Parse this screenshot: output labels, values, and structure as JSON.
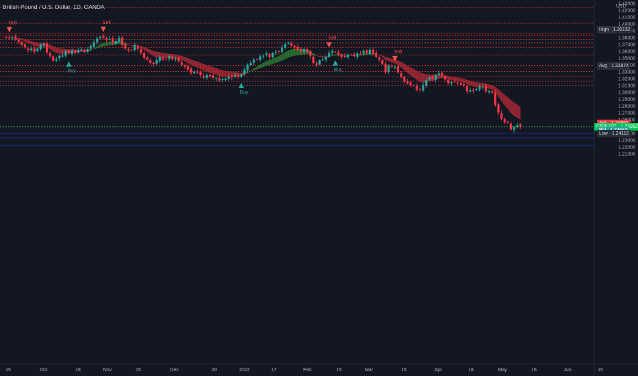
{
  "title": "British Pound / U.S. Dollar, 1D, OANDA",
  "currency": "USD",
  "colors": {
    "background": "#131722",
    "up": "#26a69a",
    "down": "#f23645",
    "bull_band": "#2e7d32",
    "bear_band": "#b22a36",
    "level_line": "#d32f2f",
    "price_line": "#4caf50",
    "text": "#b2b5be"
  },
  "chart_data": {
    "type": "candlestick",
    "symbol": "GBPUSD",
    "timeframe": "1D",
    "ylim": [
      1.2,
      1.43
    ],
    "y_ticks": [
      "1.43000",
      "1.42000",
      "1.41000",
      "1.40000",
      "1.39000",
      "1.38000",
      "1.37000",
      "1.36000",
      "1.35000",
      "1.34000",
      "1.33000",
      "1.32000",
      "1.31000",
      "1.30000",
      "1.29000",
      "1.28000",
      "1.27000",
      "1.26000",
      "1.25000",
      "1.24000",
      "1.23000",
      "1.22000",
      "1.21000"
    ],
    "x_ticks": [
      "15",
      "Oct",
      "18",
      "Nov",
      "15",
      "Dec",
      "20",
      "2022",
      "17",
      "Feb",
      "15",
      "Mar",
      "15",
      "Apr",
      "18",
      "May",
      "16",
      "Jun",
      "15"
    ],
    "closes": [
      1.3802,
      1.3797,
      1.3801,
      1.3773,
      1.3738,
      1.3693,
      1.3657,
      1.3618,
      1.3641,
      1.3592,
      1.3639,
      1.3688,
      1.3706,
      1.3582,
      1.3529,
      1.3462,
      1.3485,
      1.3535,
      1.3535,
      1.36,
      1.3574,
      1.3612,
      1.3581,
      1.3614,
      1.3629,
      1.3591,
      1.3631,
      1.3681,
      1.3735,
      1.3787,
      1.3812,
      1.38,
      1.3775,
      1.378,
      1.3722,
      1.375,
      1.3797,
      1.369,
      1.3639,
      1.3615,
      1.3611,
      1.3691,
      1.3636,
      1.357,
      1.3501,
      1.3475,
      1.3431,
      1.341,
      1.3472,
      1.3517,
      1.3478,
      1.348,
      1.353,
      1.3482,
      1.3495,
      1.3451,
      1.3399,
      1.3375,
      1.3332,
      1.3286,
      1.3302,
      1.3295,
      1.325,
      1.3216,
      1.325,
      1.3233,
      1.3212,
      1.3208,
      1.3171,
      1.319,
      1.3198,
      1.3225,
      1.3217,
      1.3253,
      1.3226,
      1.326,
      1.3334,
      1.3403,
      1.3429,
      1.3474,
      1.3477,
      1.3527,
      1.3535,
      1.3569,
      1.3515,
      1.3574,
      1.3589,
      1.3597,
      1.3653,
      1.3704,
      1.3728,
      1.3683,
      1.3658,
      1.3622,
      1.3599,
      1.3633,
      1.3593,
      1.3533,
      1.3429,
      1.3402,
      1.347,
      1.3485,
      1.352,
      1.3573,
      1.3604,
      1.359,
      1.3553,
      1.3518,
      1.352,
      1.355,
      1.3548,
      1.353,
      1.3567,
      1.356,
      1.3604,
      1.357,
      1.3623,
      1.3572,
      1.352,
      1.3475,
      1.3414,
      1.329,
      1.3389,
      1.3371,
      1.3371,
      1.329,
      1.3225,
      1.316,
      1.3133,
      1.311,
      1.3095,
      1.304,
      1.3039,
      1.3102,
      1.318,
      1.3218,
      1.3192,
      1.325,
      1.3276,
      1.3245,
      1.3186,
      1.313,
      1.315,
      1.3152,
      1.314,
      1.3112,
      1.31,
      1.3016,
      1.303,
      1.302,
      1.305,
      1.3081,
      1.3082,
      1.3015,
      1.302,
      1.2994,
      1.2814,
      1.2704,
      1.261,
      1.2562,
      1.2555,
      1.2456,
      1.249,
      1.2517,
      1.2494
    ],
    "signals": [
      {
        "label": "Sell",
        "index": 1
      },
      {
        "label": "Buy",
        "index": 20
      },
      {
        "label": "Sell",
        "index": 31
      },
      {
        "label": "Buy",
        "index": 75
      },
      {
        "label": "Sell",
        "index": 103
      },
      {
        "label": "Buy",
        "index": 105
      },
      {
        "label": "Sell",
        "index": 124
      }
    ],
    "levels": [
      1.424,
      1.4009,
      1.3864,
      1.3829,
      1.3775,
      1.3721,
      1.3657,
      1.3548,
      1.3395,
      1.3304,
      1.3228,
      1.3161,
      1.3096
    ],
    "blue_levels": [
      1.2399,
      1.2331,
      1.2227
    ],
    "price_line": 1.2494,
    "price_tags": [
      {
        "label": "High",
        "value": "1.39132",
        "price": 1.39132,
        "kind": "dark"
      },
      {
        "label": "Avg",
        "value": "1.33874",
        "price": 1.33874,
        "kind": "dark"
      },
      {
        "label": "Ask",
        "value": "1.24961",
        "price": 1.24961,
        "kind": "ask"
      },
      {
        "label": "GBPUSD",
        "value": "1.24952",
        "price": 1.24952,
        "kind": "current"
      },
      {
        "label": "Bid",
        "value": "1.24943",
        "price": 1.24943,
        "kind": "bid"
      },
      {
        "label": "Low",
        "value": "1.24112",
        "price": 1.24112,
        "kind": "dark"
      }
    ]
  }
}
